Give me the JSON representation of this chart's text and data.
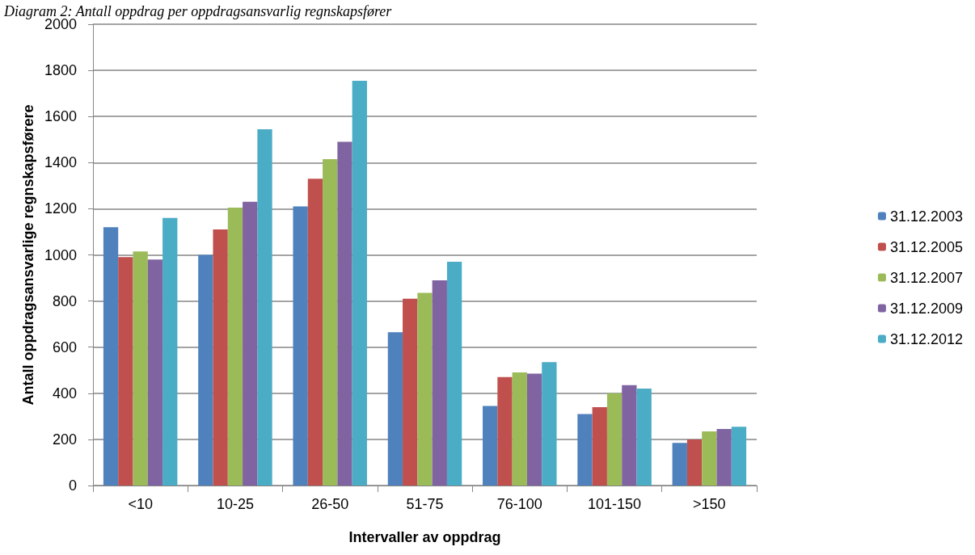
{
  "chart_data": {
    "type": "bar",
    "title": "Diagram 2: Antall oppdrag per oppdragsansvarlig regnskapsfører",
    "xlabel": "Intervaller av oppdrag",
    "ylabel": "Antall oppdragsansvarlige regnskapsførere",
    "categories": [
      "<10",
      "10-25",
      "26-50",
      "51-75",
      "76-100",
      "101-150",
      ">150"
    ],
    "series": [
      {
        "name": "31.12.2003",
        "color": "#4f81bd",
        "values": [
          1120,
          1000,
          1210,
          665,
          345,
          310,
          185
        ]
      },
      {
        "name": "31.12.2005",
        "color": "#c0504d",
        "values": [
          990,
          1110,
          1330,
          810,
          470,
          340,
          200
        ]
      },
      {
        "name": "31.12.2007",
        "color": "#9bbb59",
        "values": [
          1015,
          1205,
          1415,
          835,
          490,
          400,
          235
        ]
      },
      {
        "name": "31.12.2009",
        "color": "#8064a2",
        "values": [
          980,
          1230,
          1490,
          890,
          485,
          435,
          245
        ]
      },
      {
        "name": "31.12.2012",
        "color": "#4bacc6",
        "values": [
          1160,
          1545,
          1755,
          970,
          535,
          420,
          255
        ]
      }
    ],
    "ylim": [
      0,
      2000
    ],
    "yticks": [
      0,
      200,
      400,
      600,
      800,
      1000,
      1200,
      1400,
      1600,
      1800,
      2000
    ],
    "grid": "y",
    "legend": "right"
  }
}
